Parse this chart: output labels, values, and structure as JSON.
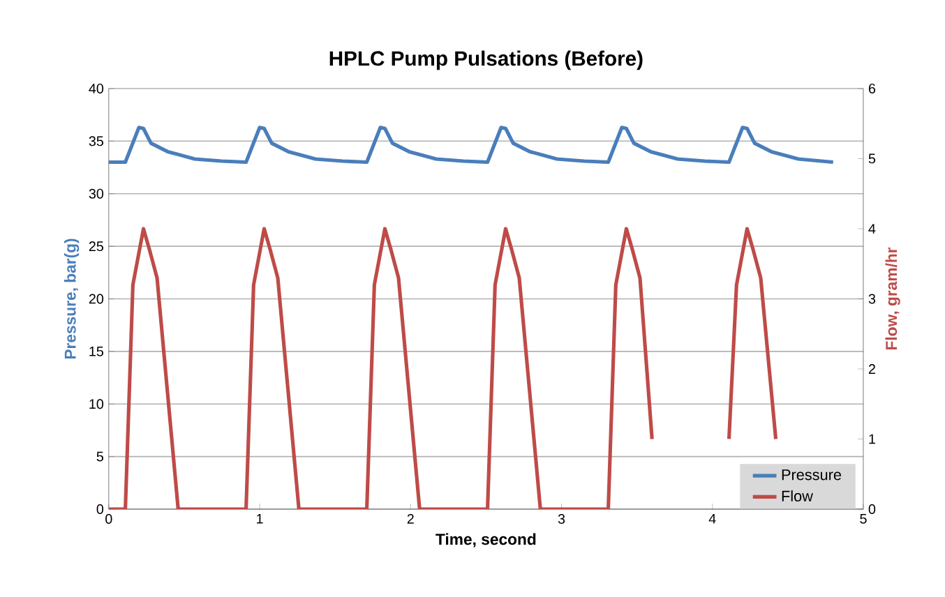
{
  "chart_data": {
    "type": "line",
    "title": "HPLC Pump Pulsations  (Before)",
    "xlabel": "Time, second",
    "ylabel": "Pressure, bar(g)",
    "y2label": "Flow, gram/hr",
    "xlim": [
      0,
      5
    ],
    "xticks": [
      0,
      1,
      2,
      3,
      4,
      5
    ],
    "ylim": [
      0,
      40
    ],
    "yticks": [
      0,
      5,
      10,
      15,
      20,
      25,
      30,
      35,
      40
    ],
    "y2lim": [
      0,
      6
    ],
    "y2ticks": [
      0,
      1,
      2,
      3,
      4,
      5,
      6
    ],
    "grid": "y",
    "legend": "bottom right",
    "line_style": "solid",
    "series": [
      {
        "name": "Pressure",
        "color": "#4a7ebb",
        "x": [
          0,
          0.11,
          0.2,
          0.23,
          0.28,
          0.39,
          0.57,
          0.75,
          0.91,
          1.0,
          1.03,
          1.08,
          1.19,
          1.37,
          1.55,
          1.71,
          1.8,
          1.83,
          1.88,
          1.99,
          2.17,
          2.35,
          2.51,
          2.6,
          2.63,
          2.68,
          2.79,
          2.97,
          3.15,
          3.31,
          3.4,
          3.43,
          3.48,
          3.59,
          3.77,
          3.95,
          4.11,
          4.2,
          4.23,
          4.28,
          4.39,
          4.57,
          4.8
        ],
        "values": [
          33,
          33,
          36.3,
          36.2,
          34.8,
          34,
          33.3,
          33.1,
          33,
          36.3,
          36.2,
          34.8,
          34,
          33.3,
          33.1,
          33,
          36.3,
          36.2,
          34.8,
          34,
          33.3,
          33.1,
          33,
          36.3,
          36.2,
          34.8,
          34,
          33.3,
          33.1,
          33,
          36.3,
          36.2,
          34.8,
          34,
          33.3,
          33.1,
          33,
          36.3,
          36.2,
          34.8,
          34,
          33.3,
          33
        ]
      },
      {
        "name": "Flow",
        "color": "#be4b48",
        "axis": "y2",
        "x": [
          0,
          0.11,
          0.16,
          0.23,
          0.27,
          0.32,
          0.46,
          0.91,
          0.96,
          1.03,
          1.07,
          1.12,
          1.26,
          1.71,
          1.76,
          1.83,
          1.87,
          1.92,
          2.06,
          2.51,
          2.56,
          2.63,
          2.67,
          2.72,
          2.86,
          3.31,
          3.36,
          3.43,
          3.47,
          3.52,
          3.6,
          3.66,
          4.11,
          4.16,
          4.23,
          4.27,
          4.32,
          4.42
        ],
        "values": [
          0,
          0,
          3.2,
          4,
          3.7,
          3.3,
          0,
          0,
          3.2,
          4,
          3.7,
          3.3,
          0,
          0,
          3.2,
          4,
          3.7,
          3.3,
          0,
          0,
          3.2,
          4,
          3.7,
          3.3,
          0,
          0,
          3.2,
          4,
          3.7,
          3.3,
          1,
          null,
          1,
          3.2,
          4,
          3.7,
          3.3,
          1
        ]
      }
    ]
  }
}
